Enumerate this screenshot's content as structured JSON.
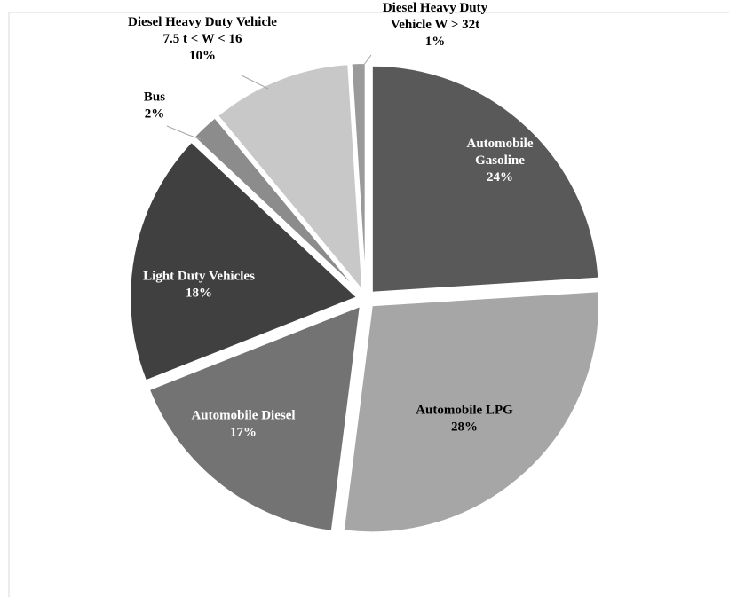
{
  "chart_data": {
    "type": "pie",
    "title": "",
    "slices": [
      {
        "label_lines": [
          "Automobile",
          "Gasoline"
        ],
        "percent_label": "24%",
        "value": 24,
        "color": "#595959",
        "text_color": "#ffffff"
      },
      {
        "label_lines": [
          "Automobile LPG"
        ],
        "percent_label": "28%",
        "value": 28,
        "color": "#a6a6a6",
        "text_color": "#000000"
      },
      {
        "label_lines": [
          "Automobile Diesel"
        ],
        "percent_label": "17%",
        "value": 17,
        "color": "#737373",
        "text_color": "#ffffff"
      },
      {
        "label_lines": [
          "Light Duty Vehicles"
        ],
        "percent_label": "18%",
        "value": 18,
        "color": "#404040",
        "text_color": "#ffffff"
      },
      {
        "label_lines": [
          "Bus"
        ],
        "percent_label": "2%",
        "value": 2,
        "color": "#8c8c8c",
        "text_color": "#000000"
      },
      {
        "label_lines": [
          "Diesel Heavy Duty Vehicle",
          "7.5 t < W < 16"
        ],
        "percent_label": "10%",
        "value": 10,
        "color": "#c8c8c8",
        "text_color": "#000000"
      },
      {
        "label_lines": [
          "Diesel Heavy Duty",
          "Vehicle W > 32t"
        ],
        "percent_label": "1%",
        "value": 1,
        "color": "#9a9a9a",
        "text_color": "#000000"
      }
    ],
    "legend": "none",
    "start_angle": "12 o'clock",
    "direction": "clockwise"
  }
}
